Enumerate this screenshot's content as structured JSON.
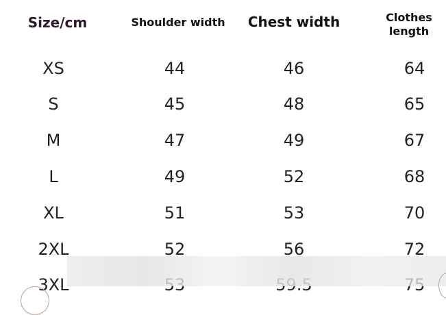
{
  "headers": {
    "size": "Size/cm",
    "shoulder": "Shoulder width",
    "chest": "Chest width",
    "length_line1": "Clothes",
    "length_line2": "length"
  },
  "rows": [
    {
      "size": "XS",
      "shoulder": "44",
      "chest": "46",
      "length": "64"
    },
    {
      "size": "S",
      "shoulder": "45",
      "chest": "48",
      "length": "65"
    },
    {
      "size": "M",
      "shoulder": "47",
      "chest": "49",
      "length": "67"
    },
    {
      "size": "L",
      "shoulder": "49",
      "chest": "52",
      "length": "68"
    },
    {
      "size": "XL",
      "shoulder": "51",
      "chest": "53",
      "length": "70"
    },
    {
      "size": "2XL",
      "shoulder": "52",
      "chest": "56",
      "length": "72"
    },
    {
      "size": "3XL",
      "shoulder": "53",
      "chest": "59.5",
      "length": "75"
    }
  ],
  "colors": {
    "size_header": "#2a1a2a",
    "text": "#222222"
  }
}
